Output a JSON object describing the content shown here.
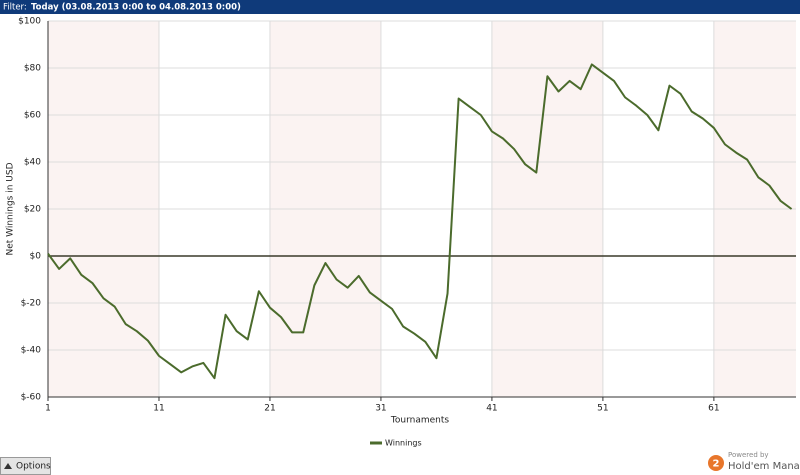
{
  "header": {
    "filter_label": "Filter:",
    "filter_value": "Today (03.08.2013 0:00 to 04.08.2013 0:00)"
  },
  "footer": {
    "options": "Options",
    "powered_by": "Powered by",
    "logo_number": "2",
    "product": "Hold'em Manager"
  },
  "chart_data": {
    "type": "line",
    "x_label": "Tournaments",
    "y_label": "Net Winnings in USD",
    "x": [
      1,
      2,
      3,
      4,
      5,
      6,
      7,
      8,
      9,
      10,
      11,
      12,
      13,
      14,
      15,
      16,
      17,
      18,
      19,
      20,
      21,
      22,
      23,
      24,
      25,
      26,
      27,
      28,
      29,
      30,
      31,
      32,
      33,
      34,
      35,
      36,
      37,
      38,
      39,
      40,
      41,
      42,
      43,
      44,
      45,
      46,
      47,
      48,
      49,
      50,
      51,
      52,
      53,
      54,
      55,
      56,
      57,
      58,
      59,
      60,
      61,
      62,
      63,
      64,
      65,
      66,
      67,
      68
    ],
    "series": [
      {
        "name": "Winnings",
        "color": "#4b6b2c",
        "values": [
          1,
          -5.5,
          -1,
          -8,
          -11.5,
          -18,
          -21.5,
          -29,
          -32,
          -36,
          -42.5,
          -46,
          -49.5,
          -47,
          -45.5,
          -52,
          -25,
          -32,
          -35.5,
          -15,
          -22,
          -26,
          -32.5,
          -32.5,
          -12.5,
          -3,
          -10,
          -13.5,
          -8.5,
          -15.5,
          -19,
          -22.5,
          -30,
          -33,
          -36.5,
          -43.5,
          -16,
          67,
          63.5,
          60,
          53,
          50,
          45.5,
          39,
          35.5,
          76.5,
          70,
          74.5,
          71,
          81.5,
          78,
          74.5,
          67.5,
          64,
          60,
          53.5,
          72.5,
          69,
          61.5,
          58.5,
          54.5,
          47.5,
          44,
          41,
          33.5,
          30,
          23.5,
          20
        ]
      }
    ],
    "xlim": [
      1,
      68.4
    ],
    "xticks": [
      1,
      11,
      21,
      31,
      41,
      51,
      61
    ],
    "ylim": [
      -60,
      100
    ],
    "yticks": [
      {
        "value": -60,
        "label": "$-60"
      },
      {
        "value": -40,
        "label": "$-40"
      },
      {
        "value": -20,
        "label": "$-20"
      },
      {
        "value": 0,
        "label": "$0"
      },
      {
        "value": 20,
        "label": "$20"
      },
      {
        "value": 40,
        "label": "$40"
      },
      {
        "value": 60,
        "label": "$60"
      },
      {
        "value": 80,
        "label": "$80"
      },
      {
        "value": 100,
        "label": "$100"
      }
    ],
    "grid": true
  }
}
